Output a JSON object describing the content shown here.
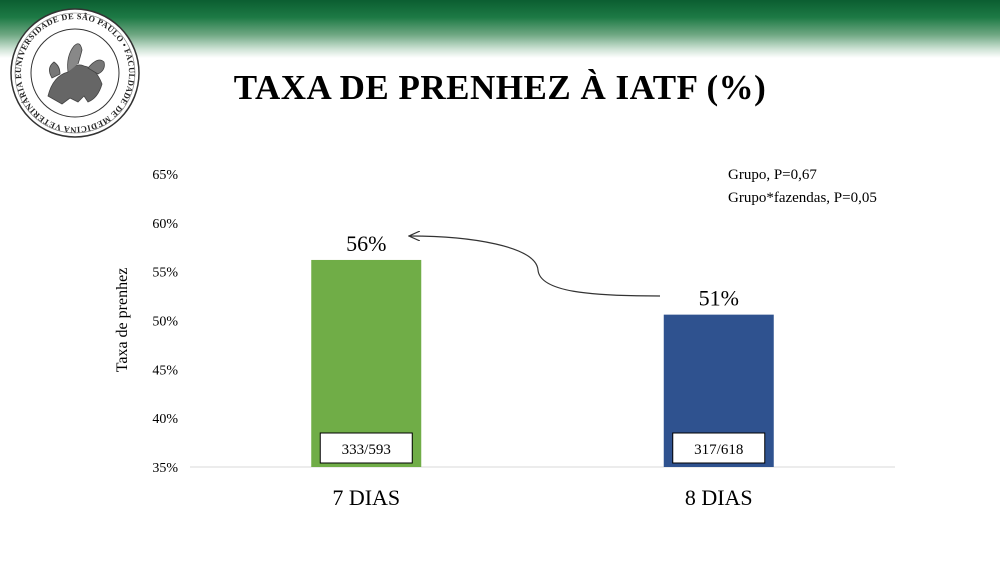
{
  "title": "TAXA DE PRENHEZ À IATF (%)",
  "logo": {
    "ring_text": "UNIVERSIDADE DE SÃO PAULO • FACULDADE DE MEDICINA VETERINÁRIA E ZOOTECNIA"
  },
  "stats": {
    "line1": "Grupo, P=0,67",
    "line2": "Grupo*fazendas, P=0,05"
  },
  "chart_data": {
    "type": "bar",
    "title": "TAXA DE PRENHEZ À IATF (%)",
    "ylabel": "Taxa de prenhez",
    "xlabel": "",
    "ylim": [
      35,
      65
    ],
    "yticks": [
      35,
      40,
      45,
      50,
      55,
      60,
      65
    ],
    "ytick_labels": [
      "35%",
      "40%",
      "45%",
      "50%",
      "55%",
      "60%",
      "65%"
    ],
    "categories": [
      "7 DIAS",
      "8 DIAS"
    ],
    "values": [
      56.2,
      50.6
    ],
    "data_labels": [
      "56%",
      "51%"
    ],
    "counts": [
      "333/593",
      "317/618"
    ],
    "colors": [
      "#70ad47",
      "#2f528f"
    ],
    "grid": false,
    "annotation": "arrow from 8 DIAS label to 7 DIAS label"
  }
}
